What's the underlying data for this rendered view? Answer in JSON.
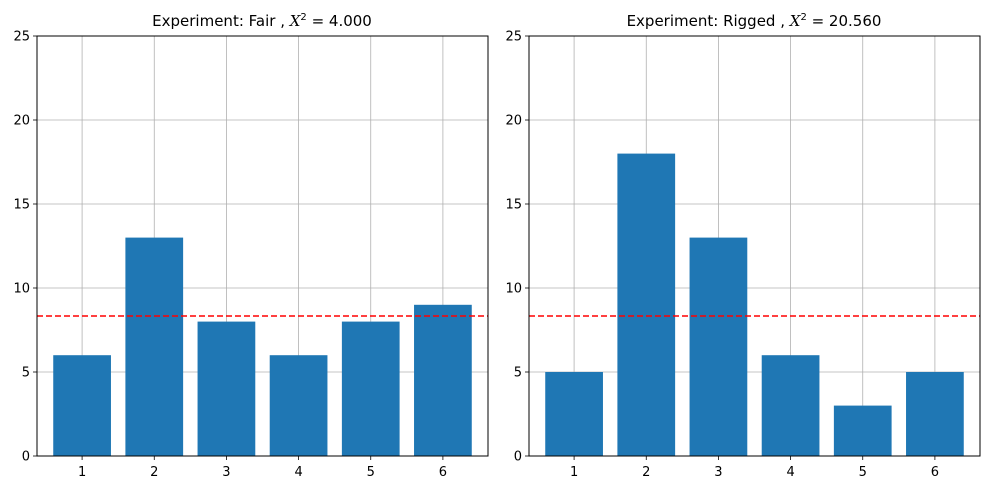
{
  "chart_data": [
    {
      "type": "bar",
      "title": {
        "prefix": "Experiment: Fair , ",
        "stat_symbol": "X",
        "stat_exp": "2",
        "stat_value": " = 4.000"
      },
      "categories": [
        "1",
        "2",
        "3",
        "4",
        "5",
        "6"
      ],
      "values": [
        6,
        13,
        8,
        6,
        8,
        9
      ],
      "expected": 8.333,
      "ylim": [
        0,
        25
      ],
      "yticks": [
        "0",
        "5",
        "10",
        "15",
        "20",
        "25"
      ],
      "xlabel": "",
      "ylabel": "",
      "grid": true,
      "bar_color": "#1f77b4",
      "expected_line_color": "#ff0000",
      "expected_line_style": "dashed"
    },
    {
      "type": "bar",
      "title": {
        "prefix": "Experiment: Rigged , ",
        "stat_symbol": "X",
        "stat_exp": "2",
        "stat_value": " = 20.560"
      },
      "categories": [
        "1",
        "2",
        "3",
        "4",
        "5",
        "6"
      ],
      "values": [
        5,
        18,
        13,
        6,
        3,
        5
      ],
      "expected": 8.333,
      "ylim": [
        0,
        25
      ],
      "yticks": [
        "0",
        "5",
        "10",
        "15",
        "20",
        "25"
      ],
      "xlabel": "",
      "ylabel": "",
      "grid": true,
      "bar_color": "#1f77b4",
      "expected_line_color": "#ff0000",
      "expected_line_style": "dashed"
    }
  ]
}
